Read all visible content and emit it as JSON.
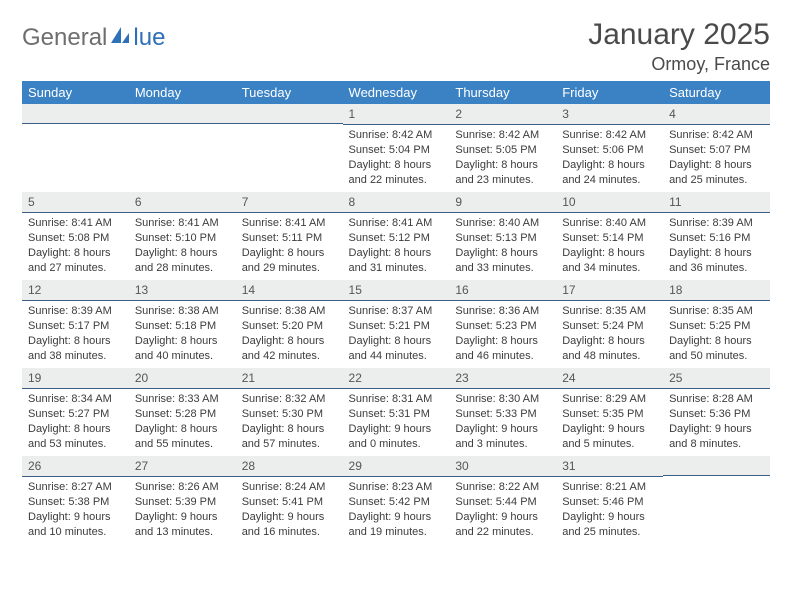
{
  "logo": {
    "part1": "General",
    "part2": "lue"
  },
  "title": "January 2025",
  "location": "Ormoy, France",
  "colors": {
    "header_bg": "#3b82c4",
    "header_text": "#ffffff",
    "daybar_bg": "#eceded",
    "daybar_border": "#3a5e86",
    "body_text": "#3c3c3c",
    "logo_gray": "#6e6e6e",
    "logo_blue": "#2f71b6"
  },
  "weekdays": [
    "Sunday",
    "Monday",
    "Tuesday",
    "Wednesday",
    "Thursday",
    "Friday",
    "Saturday"
  ],
  "weeks": [
    [
      null,
      null,
      null,
      {
        "n": "1",
        "sr": "8:42 AM",
        "ss": "5:04 PM",
        "dl": "8 hours and 22 minutes."
      },
      {
        "n": "2",
        "sr": "8:42 AM",
        "ss": "5:05 PM",
        "dl": "8 hours and 23 minutes."
      },
      {
        "n": "3",
        "sr": "8:42 AM",
        "ss": "5:06 PM",
        "dl": "8 hours and 24 minutes."
      },
      {
        "n": "4",
        "sr": "8:42 AM",
        "ss": "5:07 PM",
        "dl": "8 hours and 25 minutes."
      }
    ],
    [
      {
        "n": "5",
        "sr": "8:41 AM",
        "ss": "5:08 PM",
        "dl": "8 hours and 27 minutes."
      },
      {
        "n": "6",
        "sr": "8:41 AM",
        "ss": "5:10 PM",
        "dl": "8 hours and 28 minutes."
      },
      {
        "n": "7",
        "sr": "8:41 AM",
        "ss": "5:11 PM",
        "dl": "8 hours and 29 minutes."
      },
      {
        "n": "8",
        "sr": "8:41 AM",
        "ss": "5:12 PM",
        "dl": "8 hours and 31 minutes."
      },
      {
        "n": "9",
        "sr": "8:40 AM",
        "ss": "5:13 PM",
        "dl": "8 hours and 33 minutes."
      },
      {
        "n": "10",
        "sr": "8:40 AM",
        "ss": "5:14 PM",
        "dl": "8 hours and 34 minutes."
      },
      {
        "n": "11",
        "sr": "8:39 AM",
        "ss": "5:16 PM",
        "dl": "8 hours and 36 minutes."
      }
    ],
    [
      {
        "n": "12",
        "sr": "8:39 AM",
        "ss": "5:17 PM",
        "dl": "8 hours and 38 minutes."
      },
      {
        "n": "13",
        "sr": "8:38 AM",
        "ss": "5:18 PM",
        "dl": "8 hours and 40 minutes."
      },
      {
        "n": "14",
        "sr": "8:38 AM",
        "ss": "5:20 PM",
        "dl": "8 hours and 42 minutes."
      },
      {
        "n": "15",
        "sr": "8:37 AM",
        "ss": "5:21 PM",
        "dl": "8 hours and 44 minutes."
      },
      {
        "n": "16",
        "sr": "8:36 AM",
        "ss": "5:23 PM",
        "dl": "8 hours and 46 minutes."
      },
      {
        "n": "17",
        "sr": "8:35 AM",
        "ss": "5:24 PM",
        "dl": "8 hours and 48 minutes."
      },
      {
        "n": "18",
        "sr": "8:35 AM",
        "ss": "5:25 PM",
        "dl": "8 hours and 50 minutes."
      }
    ],
    [
      {
        "n": "19",
        "sr": "8:34 AM",
        "ss": "5:27 PM",
        "dl": "8 hours and 53 minutes."
      },
      {
        "n": "20",
        "sr": "8:33 AM",
        "ss": "5:28 PM",
        "dl": "8 hours and 55 minutes."
      },
      {
        "n": "21",
        "sr": "8:32 AM",
        "ss": "5:30 PM",
        "dl": "8 hours and 57 minutes."
      },
      {
        "n": "22",
        "sr": "8:31 AM",
        "ss": "5:31 PM",
        "dl": "9 hours and 0 minutes."
      },
      {
        "n": "23",
        "sr": "8:30 AM",
        "ss": "5:33 PM",
        "dl": "9 hours and 3 minutes."
      },
      {
        "n": "24",
        "sr": "8:29 AM",
        "ss": "5:35 PM",
        "dl": "9 hours and 5 minutes."
      },
      {
        "n": "25",
        "sr": "8:28 AM",
        "ss": "5:36 PM",
        "dl": "9 hours and 8 minutes."
      }
    ],
    [
      {
        "n": "26",
        "sr": "8:27 AM",
        "ss": "5:38 PM",
        "dl": "9 hours and 10 minutes."
      },
      {
        "n": "27",
        "sr": "8:26 AM",
        "ss": "5:39 PM",
        "dl": "9 hours and 13 minutes."
      },
      {
        "n": "28",
        "sr": "8:24 AM",
        "ss": "5:41 PM",
        "dl": "9 hours and 16 minutes."
      },
      {
        "n": "29",
        "sr": "8:23 AM",
        "ss": "5:42 PM",
        "dl": "9 hours and 19 minutes."
      },
      {
        "n": "30",
        "sr": "8:22 AM",
        "ss": "5:44 PM",
        "dl": "9 hours and 22 minutes."
      },
      {
        "n": "31",
        "sr": "8:21 AM",
        "ss": "5:46 PM",
        "dl": "9 hours and 25 minutes."
      },
      null
    ]
  ]
}
